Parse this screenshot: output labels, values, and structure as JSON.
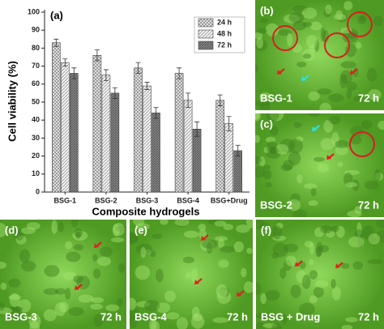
{
  "chart_data": {
    "type": "bar",
    "panel_label": "(a)",
    "xlabel": "Composite hydrogels",
    "ylabel": "Cell viability (%)",
    "categories": [
      "BSG-1",
      "BSG-2",
      "BSG-3",
      "BSG-4",
      "BSG+Drug"
    ],
    "series": [
      {
        "name": "24 h",
        "color": "#8a8a8a",
        "pattern": "cross",
        "values": [
          83,
          76,
          69,
          66,
          51
        ],
        "errors": [
          2,
          3,
          3,
          3,
          3
        ]
      },
      {
        "name": "48 h",
        "color": "#9a9a9a",
        "pattern": "diagonal",
        "values": [
          72,
          65,
          59,
          51,
          38
        ],
        "errors": [
          2,
          3,
          2,
          4,
          4
        ]
      },
      {
        "name": "72 h",
        "color": "#5a5a5a",
        "pattern": "dense",
        "values": [
          66,
          55,
          44,
          35,
          23
        ],
        "errors": [
          3,
          3,
          3,
          4,
          3
        ]
      }
    ],
    "ylim": [
      0,
      100
    ],
    "yticks": [
      0,
      10,
      20,
      30,
      40,
      50,
      60,
      70,
      80,
      90,
      100
    ],
    "legend": "upper right"
  },
  "panels": [
    {
      "label": "(b)",
      "sample": "BSG-1",
      "time": "72 h"
    },
    {
      "label": "(c)",
      "sample": "BSG-2",
      "time": "72 h"
    },
    {
      "label": "(d)",
      "sample": "BSG-3",
      "time": "72 h"
    },
    {
      "label": "(e)",
      "sample": "BSG-4",
      "time": "72 h"
    },
    {
      "label": "(f)",
      "sample": "BSG + Drug",
      "time": "72 h"
    }
  ]
}
